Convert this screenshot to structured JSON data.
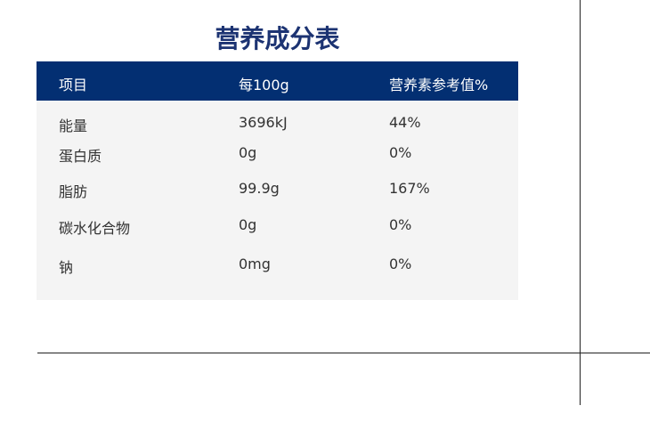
{
  "title": "营养成分表",
  "headers": [
    "项目",
    "每100g",
    "营养素参考值%"
  ],
  "rows": [
    [
      "能量",
      "3696kJ",
      "44%"
    ],
    [
      "蛋白质",
      "0g",
      "0%"
    ],
    [
      "脂肪",
      "99.9g",
      "167%"
    ],
    [
      "碳水化合物",
      "0g",
      "0%"
    ],
    [
      "钠",
      "0mg",
      "0%"
    ]
  ],
  "colors": {
    "header_bg": "#032f72",
    "title": "#1c3372",
    "body_bg": "#f4f4f4"
  }
}
